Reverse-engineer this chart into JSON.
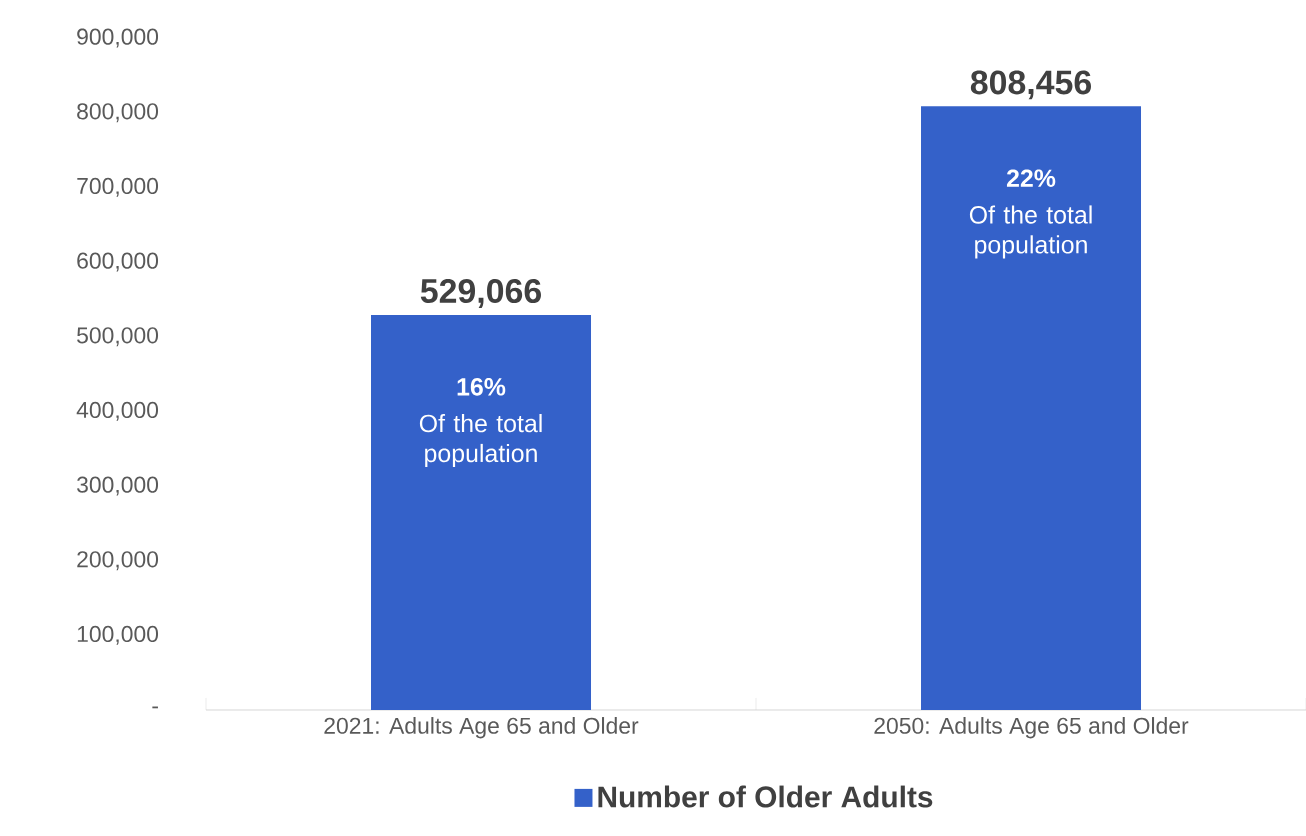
{
  "chart_data": {
    "type": "bar",
    "categories": [
      "2021: Adults Age 65 and Older",
      "2050: Adults Age 65 and Older"
    ],
    "series": [
      {
        "name": "Number of Older Adults",
        "color": "#3461c9",
        "values": [
          529066,
          808456
        ]
      }
    ],
    "value_labels": [
      "529,066",
      "808,456"
    ],
    "ylim": [
      0,
      900000
    ],
    "yticks": [
      {
        "value": 0,
        "label": "-"
      },
      {
        "value": 100000,
        "label": "100,000"
      },
      {
        "value": 200000,
        "label": "200,000"
      },
      {
        "value": 300000,
        "label": "300,000"
      },
      {
        "value": 400000,
        "label": "400,000"
      },
      {
        "value": 500000,
        "label": "500,000"
      },
      {
        "value": 600000,
        "label": "600,000"
      },
      {
        "value": 700000,
        "label": "700,000"
      },
      {
        "value": 800000,
        "label": "800,000"
      },
      {
        "value": 900000,
        "label": "900,000"
      }
    ],
    "annotations": [
      "**16%**",
      "Of the total population",
      "**22%**",
      "Of the total population"
    ],
    "grid": false,
    "legend": "bottom"
  }
}
